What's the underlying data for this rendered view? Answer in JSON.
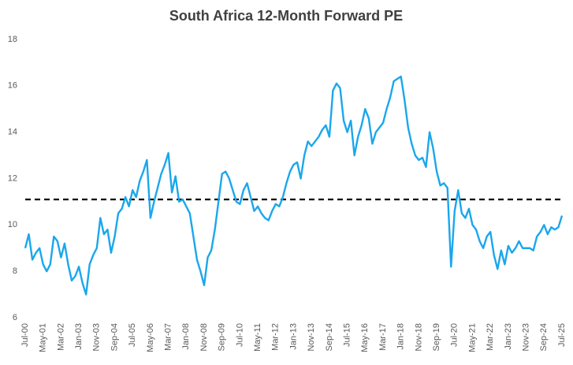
{
  "chart_data": {
    "type": "line",
    "title": "South Africa 12-Month Forward PE",
    "categories": [
      "Jul-00",
      null,
      null,
      null,
      null,
      "May-01",
      null,
      null,
      null,
      null,
      "Mar-02",
      null,
      null,
      null,
      null,
      "Jan-03",
      null,
      null,
      null,
      null,
      "Nov-03",
      null,
      null,
      null,
      null,
      "Sep-04",
      null,
      null,
      null,
      null,
      "Jul-05",
      null,
      null,
      null,
      null,
      "May-06",
      null,
      null,
      null,
      null,
      "Mar-07",
      null,
      null,
      null,
      null,
      "Jan-08",
      null,
      null,
      null,
      null,
      "Nov-08",
      null,
      null,
      null,
      null,
      "Sep-09",
      null,
      null,
      null,
      null,
      "Jul-10",
      null,
      null,
      null,
      null,
      "May-11",
      null,
      null,
      null,
      null,
      "Mar-12",
      null,
      null,
      null,
      null,
      "Jan-13",
      null,
      null,
      null,
      null,
      "Nov-13",
      null,
      null,
      null,
      null,
      "Sep-14",
      null,
      null,
      null,
      null,
      "Jul-15",
      null,
      null,
      null,
      null,
      "May-16",
      null,
      null,
      null,
      null,
      "Mar-17",
      null,
      null,
      null,
      null,
      "Jan-18",
      null,
      null,
      null,
      null,
      "Nov-18",
      null,
      null,
      null,
      null,
      "Sep-19",
      null,
      null,
      null,
      null,
      "Jul-20",
      null,
      null,
      null,
      null,
      "May-21",
      null,
      null,
      null,
      null,
      "Mar-22",
      null,
      null,
      null,
      null,
      "Jan-23",
      null,
      null,
      null,
      null,
      "Nov-23",
      null,
      null,
      null,
      null,
      "Sep-24",
      null,
      null,
      null,
      null,
      "Jul-25"
    ],
    "values": [
      9.0,
      9.6,
      8.5,
      8.8,
      9.0,
      8.3,
      8.0,
      8.3,
      9.5,
      9.3,
      8.6,
      9.2,
      8.3,
      7.6,
      7.8,
      8.2,
      7.5,
      7.0,
      8.3,
      8.7,
      9.0,
      10.3,
      9.6,
      9.8,
      8.8,
      9.5,
      10.5,
      10.7,
      11.2,
      10.8,
      11.5,
      11.2,
      11.9,
      12.3,
      12.8,
      10.3,
      11.0,
      11.6,
      12.2,
      12.6,
      13.1,
      11.4,
      12.1,
      11.0,
      11.1,
      10.8,
      10.5,
      9.5,
      8.5,
      8.0,
      7.4,
      8.6,
      8.9,
      9.8,
      11.0,
      12.2,
      12.3,
      12.0,
      11.5,
      11.0,
      10.9,
      11.5,
      11.8,
      11.2,
      10.6,
      10.8,
      10.5,
      10.3,
      10.2,
      10.6,
      10.9,
      10.8,
      11.2,
      11.8,
      12.3,
      12.6,
      12.7,
      12.0,
      13.0,
      13.6,
      13.4,
      13.6,
      13.8,
      14.1,
      14.3,
      13.8,
      15.8,
      16.1,
      15.9,
      14.5,
      14.0,
      14.5,
      13.0,
      13.8,
      14.3,
      15.0,
      14.6,
      13.5,
      14.0,
      14.2,
      14.4,
      15.0,
      15.5,
      16.2,
      16.3,
      16.4,
      15.4,
      14.2,
      13.5,
      13.0,
      12.8,
      12.9,
      12.5,
      14.0,
      13.3,
      12.3,
      11.7,
      11.8,
      11.6,
      8.2,
      10.6,
      11.5,
      10.5,
      10.3,
      10.7,
      10.0,
      9.8,
      9.3,
      9.0,
      9.5,
      9.7,
      8.7,
      8.1,
      8.9,
      8.3,
      9.1,
      8.8,
      9.0,
      9.3,
      9.0,
      9.0,
      9.0,
      8.9,
      9.5,
      9.7,
      10.0,
      9.6,
      9.9,
      9.8,
      9.9,
      10.4
    ],
    "color": "#1aa7ec",
    "reference_line": {
      "value": 11.1,
      "color": "#000000",
      "style": "dashed"
    },
    "ylim": [
      6,
      18
    ],
    "yticks": [
      6,
      8,
      10,
      12,
      14,
      16,
      18
    ],
    "grid": false
  }
}
